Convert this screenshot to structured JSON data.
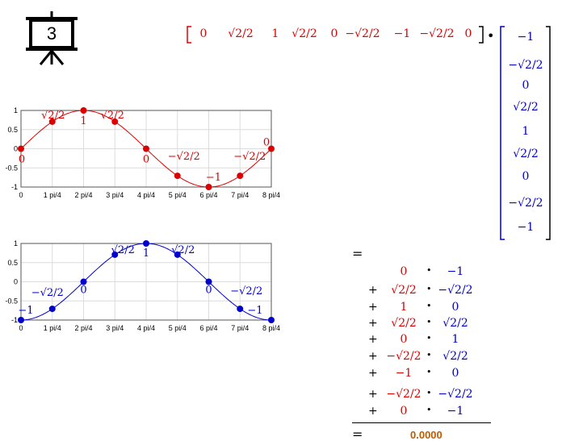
{
  "slide": {
    "number": "3",
    "icon": "presentation-board-icon"
  },
  "row_vector": [
    "0",
    "√2/2",
    "1",
    "√2/2",
    "0",
    "−√2/2",
    "−1",
    "−√2/2",
    "0"
  ],
  "dot": "•",
  "col_vector": [
    "−1",
    "−√2/2",
    "0",
    "√2/2",
    "1",
    "√2/2",
    "0",
    "−√2/2",
    "−1"
  ],
  "equals": "=",
  "plus": "+",
  "products": [
    {
      "a": "0",
      "b": "−1"
    },
    {
      "a": "√2/2",
      "b": "−√2/2"
    },
    {
      "a": "1",
      "b": "0"
    },
    {
      "a": "√2/2",
      "b": "√2/2"
    },
    {
      "a": "0",
      "b": "1"
    },
    {
      "a": "−√2/2",
      "b": "√2/2"
    },
    {
      "a": "−1",
      "b": "0"
    },
    {
      "a": "−√2/2",
      "b": "−√2/2"
    },
    {
      "a": "0",
      "b": "−1"
    }
  ],
  "result": "0.0000",
  "chart_data": [
    {
      "type": "line",
      "color": "#dd0000",
      "x": [
        0,
        1,
        2,
        3,
        4,
        5,
        6,
        7,
        8
      ],
      "values": [
        0,
        0.7071,
        1,
        0.7071,
        0,
        -0.7071,
        -1,
        -0.7071,
        0
      ],
      "ylim": [
        -1,
        1
      ],
      "xlim": [
        0,
        8
      ],
      "xticks": [
        "0",
        "1 pi/4",
        "2 pi/4",
        "3 pi/4",
        "4 pi/4",
        "5 pi/4",
        "6 pi/4",
        "7 pi/4",
        "8 pi/4"
      ],
      "yticks": [
        "1",
        "0.5",
        "0",
        "-0.5",
        "-1"
      ],
      "grid": true,
      "point_labels": [
        "0",
        "√2/2",
        "1",
        "√2/2",
        "0",
        "−√2/2",
        "−1",
        "−√2/2",
        "0"
      ]
    },
    {
      "type": "line",
      "color": "#0000cc",
      "x": [
        0,
        1,
        2,
        3,
        4,
        5,
        6,
        7,
        8
      ],
      "values": [
        -1,
        -0.7071,
        0,
        0.7071,
        1,
        0.7071,
        0,
        -0.7071,
        -1
      ],
      "ylim": [
        -1,
        1
      ],
      "xlim": [
        0,
        8
      ],
      "xticks": [
        "0",
        "1 pi/4",
        "2 pi/4",
        "3 pi/4",
        "4 pi/4",
        "5 pi/4",
        "6 pi/4",
        "7 pi/4",
        "8 pi/4"
      ],
      "yticks": [
        "1",
        "0.5",
        "0",
        "-0.5",
        "-1"
      ],
      "grid": true,
      "point_labels": [
        "−1",
        "−√2/2",
        "0",
        "√2/2",
        "1",
        "√2/2",
        "0",
        "−√2/2",
        "−1"
      ]
    }
  ]
}
